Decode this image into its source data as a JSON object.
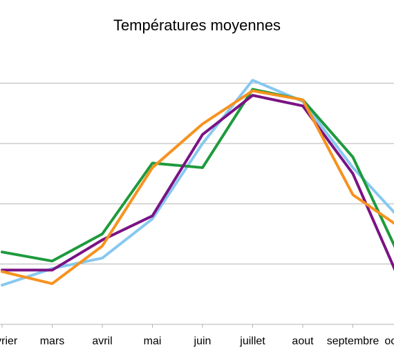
{
  "chart_data": {
    "type": "line",
    "title": "Températures moyennes",
    "categories": [
      "février",
      "mars",
      "avril",
      "mai",
      "juin",
      "juillet",
      "aout",
      "septembre",
      "octobre"
    ],
    "series": [
      {
        "color": "#87c8f0",
        "values": [
          3.0,
          8.5,
          12.0,
          25.0,
          50.0,
          71.0,
          64.0,
          42.0,
          24.0
        ]
      },
      {
        "color": "#1e9a3c",
        "values": [
          14.0,
          11.0,
          20.0,
          43.5,
          42.0,
          68.0,
          64.5,
          45.5,
          10.0
        ]
      },
      {
        "color": "#7a1384",
        "values": [
          8.0,
          8.0,
          18.0,
          26.0,
          53.0,
          66.0,
          62.5,
          40.0,
          2.0
        ]
      },
      {
        "color": "#f7921e",
        "values": [
          7.5,
          3.5,
          16.0,
          42.0,
          56.5,
          67.5,
          64.5,
          33.0,
          21.5
        ]
      }
    ],
    "ylim": [
      -10,
      80
    ],
    "grid": true,
    "legend": "none"
  }
}
